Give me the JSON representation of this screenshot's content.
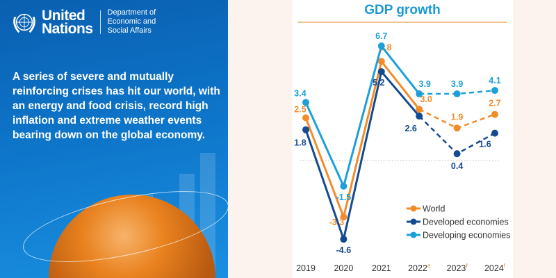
{
  "header": {
    "org_name_line1": "United",
    "org_name_line2": "Nations",
    "dept_line1": "Department of",
    "dept_line2": "Economic and",
    "dept_line3": "Social Affairs"
  },
  "headline": "A series of severe and mutually reinforcing crises has hit our world, with an energy and food crisis, record high inflation and extreme weather events bearing down on the global economy.",
  "colors": {
    "world": "#f28c28",
    "developed": "#144a8f",
    "developing": "#1d9fd9",
    "panel": "#0d6fc0"
  },
  "chart_data": {
    "type": "line",
    "title": "GDP growth",
    "categories": [
      "2019",
      "2020",
      "2021",
      "2022",
      "2023",
      "2024"
    ],
    "category_suffixes": [
      "",
      "",
      "",
      "e",
      "f",
      "f"
    ],
    "ylim": [
      -5,
      7
    ],
    "zero_line": true,
    "legend_position": "bottom-right",
    "forecast_from_index": 3,
    "series": [
      {
        "name": "World",
        "values": [
          2.5,
          -3.3,
          5.8,
          3.0,
          1.9,
          2.7
        ],
        "labels": [
          "2.5",
          "-3.3",
          "5.8",
          "3.0",
          "1.9",
          "2.7"
        ]
      },
      {
        "name": "Developed economies",
        "values": [
          1.8,
          -4.6,
          5.2,
          2.6,
          0.4,
          1.6
        ],
        "labels": [
          "1.8",
          "-4.6",
          "5.2",
          "2.6",
          "0.4",
          "1.6"
        ]
      },
      {
        "name": "Developing economies",
        "values": [
          3.4,
          -1.5,
          6.7,
          3.9,
          3.9,
          4.1
        ],
        "labels": [
          "3.4",
          "-1.5",
          "6.7",
          "3.9",
          "3.9",
          "4.1"
        ]
      }
    ]
  }
}
